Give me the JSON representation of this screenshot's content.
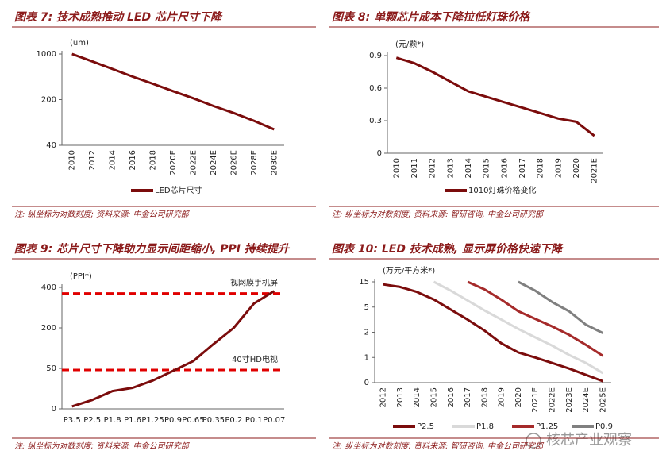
{
  "chart_data": [
    {
      "type": "line",
      "title": "图表 7: 技术成熟推动 LED 芯片尺寸下降",
      "unit": "(um)",
      "categories": [
        "2010",
        "2012",
        "2014",
        "2016",
        "2018",
        "2020E",
        "2022E",
        "2024E",
        "2026E",
        "2028E",
        "2030E"
      ],
      "series": [
        {
          "name": "LED芯片尺寸",
          "color": "#7b0c0c",
          "values": [
            1000,
            770,
            590,
            450,
            350,
            270,
            210,
            160,
            125,
            95,
            70
          ]
        }
      ],
      "yscale": "log",
      "ylim": [
        40,
        1000
      ],
      "yticks": [
        40,
        200,
        1000
      ],
      "note": "注: 纵坐标为对数刻度; 资料来源: 中金公司研究部"
    },
    {
      "type": "line",
      "title": "图表 8: 单颗芯片成本下降拉低灯珠价格",
      "unit": "(元/颗*)",
      "categories": [
        "2010",
        "2011",
        "2012",
        "2013",
        "2014",
        "2015",
        "2016",
        "2017",
        "2018",
        "2019",
        "2020",
        "2021E"
      ],
      "series": [
        {
          "name": "1010灯珠价格变化",
          "color": "#7b0c0c",
          "values": [
            0.88,
            0.83,
            0.75,
            0.66,
            0.57,
            0.52,
            0.47,
            0.42,
            0.37,
            0.32,
            0.29,
            0.16
          ]
        }
      ],
      "yscale": "linear",
      "ylim": [
        0,
        0.9
      ],
      "yticks": [
        0,
        0.3,
        0.6,
        0.9
      ],
      "note": "注: 纵坐标为对数刻度; 资料来源: 智研咨询, 中金公司研究部"
    },
    {
      "type": "line",
      "title": "图表 9: 芯片尺寸下降助力显示间距缩小, PPI 持续提升",
      "unit": "(PPI*)",
      "categories": [
        "P3.5",
        "P2.5",
        "P1.8",
        "P1.6",
        "P1.25",
        "P0.9",
        "P0.65",
        "P0.35",
        "P0.2",
        "P0.1",
        "P0.07"
      ],
      "series": [
        {
          "name": "PPI",
          "color": "#7b0c0c",
          "values": [
            3,
            11,
            22,
            26,
            35,
            47,
            77,
            140,
            200,
            320,
            382
          ]
        }
      ],
      "yscale": "tick-spaced",
      "ylim": [
        0,
        400
      ],
      "yticks": [
        0,
        50,
        200,
        400
      ],
      "reference_lines": [
        {
          "value": 370,
          "label": "视网膜手机屏",
          "color": "#e00000"
        },
        {
          "value": 48,
          "label": "40寸HD电视",
          "color": "#e00000"
        }
      ],
      "note": "注: 纵坐标为对数刻度; 资料来源: 中金公司研究部"
    },
    {
      "type": "line",
      "title": "图表 10: LED 技术成熟, 显示屏价格快速下降",
      "unit": "(万元/平方米*)",
      "categories": [
        "2012",
        "2013",
        "2014",
        "2015",
        "2016",
        "2017",
        "2018",
        "2019",
        "2020",
        "2021E",
        "2022E",
        "2023E",
        "2024E",
        "2025E"
      ],
      "series": [
        {
          "name": "P2.5",
          "color": "#7b0c0c",
          "values": [
            14,
            13,
            11,
            8,
            4.7,
            3.5,
            2.2,
            1.56,
            1.2,
            1.0,
            0.78,
            0.56,
            0.31,
            0.06
          ]
        },
        {
          "name": "P1.8",
          "color": "#d9d9d9",
          "values": [
            null,
            null,
            null,
            15,
            11.5,
            7.6,
            4.6,
            3.5,
            2.4,
            1.8,
            1.47,
            1.1,
            0.78,
            0.38
          ]
        },
        {
          "name": "P1.25",
          "color": "#a52a2a",
          "values": [
            null,
            null,
            null,
            null,
            null,
            15,
            12,
            7.9,
            4.5,
            3.6,
            2.7,
            1.9,
            1.5,
            1.06
          ]
        },
        {
          "name": "P0.9",
          "color": "#808080",
          "values": [
            null,
            null,
            null,
            null,
            null,
            null,
            null,
            null,
            15,
            11.5,
            7,
            4.5,
            2.9,
            1.97
          ]
        }
      ],
      "yscale": "tick-spaced",
      "ylim": [
        0,
        15
      ],
      "yticks": [
        0,
        1,
        2,
        5,
        15
      ],
      "note": "注: 纵坐标为对数刻度; 资料来源: 智研咨询, 中金公司研究部"
    }
  ],
  "watermark": "核芯产业观察"
}
